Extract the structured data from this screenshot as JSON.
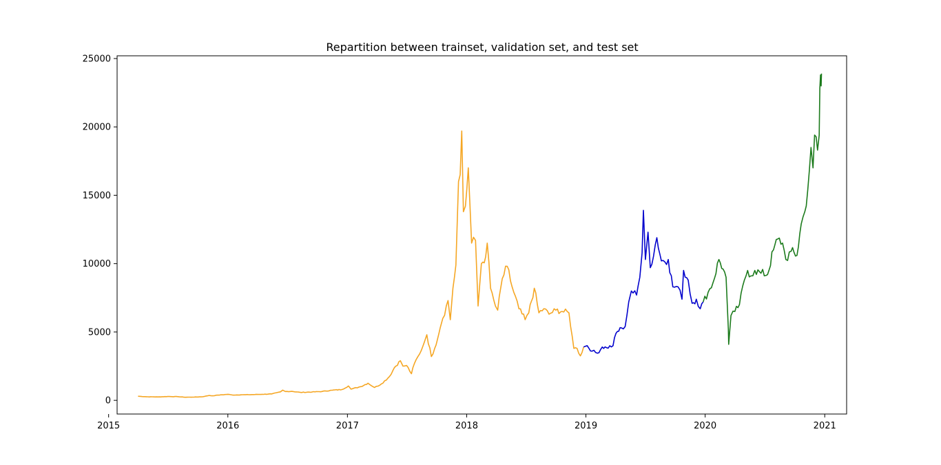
{
  "chart_data": {
    "type": "line",
    "title": "Repartition between trainset, validation set, and test set",
    "xlabel": "",
    "ylabel": "",
    "x_ticks": [
      "2015",
      "2016",
      "2017",
      "2018",
      "2019",
      "2020",
      "2021"
    ],
    "y_ticks": [
      "0",
      "5000",
      "10000",
      "15000",
      "20000",
      "25000"
    ],
    "xlim": [
      "2015-01-27",
      "2021-03-09"
    ],
    "ylim": [
      -1000,
      25200
    ],
    "grid": false,
    "legend": "none",
    "series": [
      {
        "color": "#f5a623",
        "points": [
          [
            "2015-04-01",
            300
          ],
          [
            "2015-05-01",
            260
          ],
          [
            "2015-06-01",
            250
          ],
          [
            "2015-07-01",
            280
          ],
          [
            "2015-08-01",
            270
          ],
          [
            "2015-08-20",
            230
          ],
          [
            "2015-09-15",
            235
          ],
          [
            "2015-10-15",
            260
          ],
          [
            "2015-11-05",
            360
          ],
          [
            "2015-11-15",
            330
          ],
          [
            "2015-12-01",
            380
          ],
          [
            "2016-01-01",
            440
          ],
          [
            "2016-01-15",
            390
          ],
          [
            "2016-02-15",
            410
          ],
          [
            "2016-03-15",
            420
          ],
          [
            "2016-04-15",
            440
          ],
          [
            "2016-05-15",
            470
          ],
          [
            "2016-06-10",
            620
          ],
          [
            "2016-06-17",
            750
          ],
          [
            "2016-06-25",
            650
          ],
          [
            "2016-07-15",
            660
          ],
          [
            "2016-08-10",
            580
          ],
          [
            "2016-09-15",
            610
          ],
          [
            "2016-10-15",
            650
          ],
          [
            "2016-11-15",
            740
          ],
          [
            "2016-12-15",
            790
          ],
          [
            "2017-01-04",
            1050
          ],
          [
            "2017-01-12",
            820
          ],
          [
            "2017-02-10",
            1000
          ],
          [
            "2017-03-05",
            1250
          ],
          [
            "2017-03-25",
            940
          ],
          [
            "2017-04-15",
            1200
          ],
          [
            "2017-05-10",
            1750
          ],
          [
            "2017-05-25",
            2400
          ],
          [
            "2017-06-12",
            2900
          ],
          [
            "2017-06-20",
            2500
          ],
          [
            "2017-07-01",
            2550
          ],
          [
            "2017-07-16",
            1950
          ],
          [
            "2017-07-25",
            2700
          ],
          [
            "2017-08-10",
            3400
          ],
          [
            "2017-08-25",
            4300
          ],
          [
            "2017-09-01",
            4800
          ],
          [
            "2017-09-15",
            3200
          ],
          [
            "2017-09-25",
            3800
          ],
          [
            "2017-10-12",
            5300
          ],
          [
            "2017-10-20",
            6000
          ],
          [
            "2017-11-05",
            7300
          ],
          [
            "2017-11-12",
            5900
          ],
          [
            "2017-11-20",
            8200
          ],
          [
            "2017-11-29",
            9900
          ],
          [
            "2017-12-07",
            16000
          ],
          [
            "2017-12-12",
            16500
          ],
          [
            "2017-12-17",
            19700
          ],
          [
            "2017-12-22",
            13800
          ],
          [
            "2017-12-28",
            14200
          ],
          [
            "2018-01-06",
            17000
          ],
          [
            "2018-01-16",
            11500
          ],
          [
            "2018-01-28",
            11700
          ],
          [
            "2018-02-05",
            6900
          ],
          [
            "2018-02-15",
            10000
          ],
          [
            "2018-02-28",
            10500
          ],
          [
            "2018-03-05",
            11500
          ],
          [
            "2018-03-15",
            8200
          ],
          [
            "2018-03-30",
            6900
          ],
          [
            "2018-04-06",
            6600
          ],
          [
            "2018-04-20",
            8900
          ],
          [
            "2018-05-05",
            9800
          ],
          [
            "2018-05-20",
            8300
          ],
          [
            "2018-06-10",
            6700
          ],
          [
            "2018-06-29",
            5900
          ],
          [
            "2018-07-10",
            6400
          ],
          [
            "2018-07-27",
            8200
          ],
          [
            "2018-08-10",
            6400
          ],
          [
            "2018-08-25",
            6700
          ],
          [
            "2018-09-10",
            6300
          ],
          [
            "2018-10-01",
            6600
          ],
          [
            "2018-10-20",
            6500
          ],
          [
            "2018-11-10",
            6400
          ],
          [
            "2018-11-20",
            4700
          ],
          [
            "2018-11-25",
            3800
          ],
          [
            "2018-12-05",
            3800
          ],
          [
            "2018-12-15",
            3250
          ],
          [
            "2018-12-25",
            3900
          ]
        ]
      },
      {
        "color": "#0000cc",
        "points": [
          [
            "2018-12-25",
            3900
          ],
          [
            "2019-01-05",
            4000
          ],
          [
            "2019-01-20",
            3600
          ],
          [
            "2019-02-05",
            3450
          ],
          [
            "2019-02-20",
            3900
          ],
          [
            "2019-03-05",
            3850
          ],
          [
            "2019-03-25",
            4000
          ],
          [
            "2019-04-03",
            4900
          ],
          [
            "2019-04-20",
            5300
          ],
          [
            "2019-05-01",
            5400
          ],
          [
            "2019-05-12",
            7200
          ],
          [
            "2019-05-20",
            8000
          ],
          [
            "2019-06-05",
            7700
          ],
          [
            "2019-06-15",
            9000
          ],
          [
            "2019-06-22",
            10800
          ],
          [
            "2019-06-26",
            13900
          ],
          [
            "2019-07-02",
            10300
          ],
          [
            "2019-07-10",
            12300
          ],
          [
            "2019-07-17",
            9700
          ],
          [
            "2019-08-06",
            11900
          ],
          [
            "2019-08-20",
            10200
          ],
          [
            "2019-09-10",
            10300
          ],
          [
            "2019-09-24",
            8300
          ],
          [
            "2019-10-10",
            8300
          ],
          [
            "2019-10-22",
            7400
          ],
          [
            "2019-10-27",
            9500
          ],
          [
            "2019-11-10",
            8800
          ],
          [
            "2019-11-22",
            7100
          ],
          [
            "2019-12-05",
            7400
          ],
          [
            "2019-12-17",
            6700
          ],
          [
            "2019-12-26",
            7200
          ]
        ]
      },
      {
        "color": "#1b7a1b",
        "points": [
          [
            "2019-12-26",
            7200
          ],
          [
            "2020-01-10",
            7900
          ],
          [
            "2020-01-25",
            8600
          ],
          [
            "2020-02-12",
            10300
          ],
          [
            "2020-02-25",
            9600
          ],
          [
            "2020-03-05",
            9000
          ],
          [
            "2020-03-12",
            5200
          ],
          [
            "2020-03-13",
            4100
          ],
          [
            "2020-03-20",
            6200
          ],
          [
            "2020-04-01",
            6500
          ],
          [
            "2020-04-15",
            7000
          ],
          [
            "2020-04-30",
            8800
          ],
          [
            "2020-05-10",
            9500
          ],
          [
            "2020-05-20",
            9100
          ],
          [
            "2020-06-01",
            9500
          ],
          [
            "2020-06-20",
            9300
          ],
          [
            "2020-07-10",
            9200
          ],
          [
            "2020-07-28",
            11000
          ],
          [
            "2020-08-10",
            11800
          ],
          [
            "2020-08-25",
            11500
          ],
          [
            "2020-09-04",
            10300
          ],
          [
            "2020-09-20",
            10900
          ],
          [
            "2020-10-08",
            10600
          ],
          [
            "2020-10-21",
            12900
          ],
          [
            "2020-11-01",
            13800
          ],
          [
            "2020-11-10",
            15400
          ],
          [
            "2020-11-20",
            18500
          ],
          [
            "2020-11-26",
            17000
          ],
          [
            "2020-12-01",
            19400
          ],
          [
            "2020-12-10",
            18300
          ],
          [
            "2020-12-15",
            19400
          ],
          [
            "2020-12-17",
            22800
          ],
          [
            "2020-12-19",
            23800
          ],
          [
            "2020-12-21",
            23000
          ],
          [
            "2020-12-22",
            23900
          ]
        ]
      }
    ]
  }
}
